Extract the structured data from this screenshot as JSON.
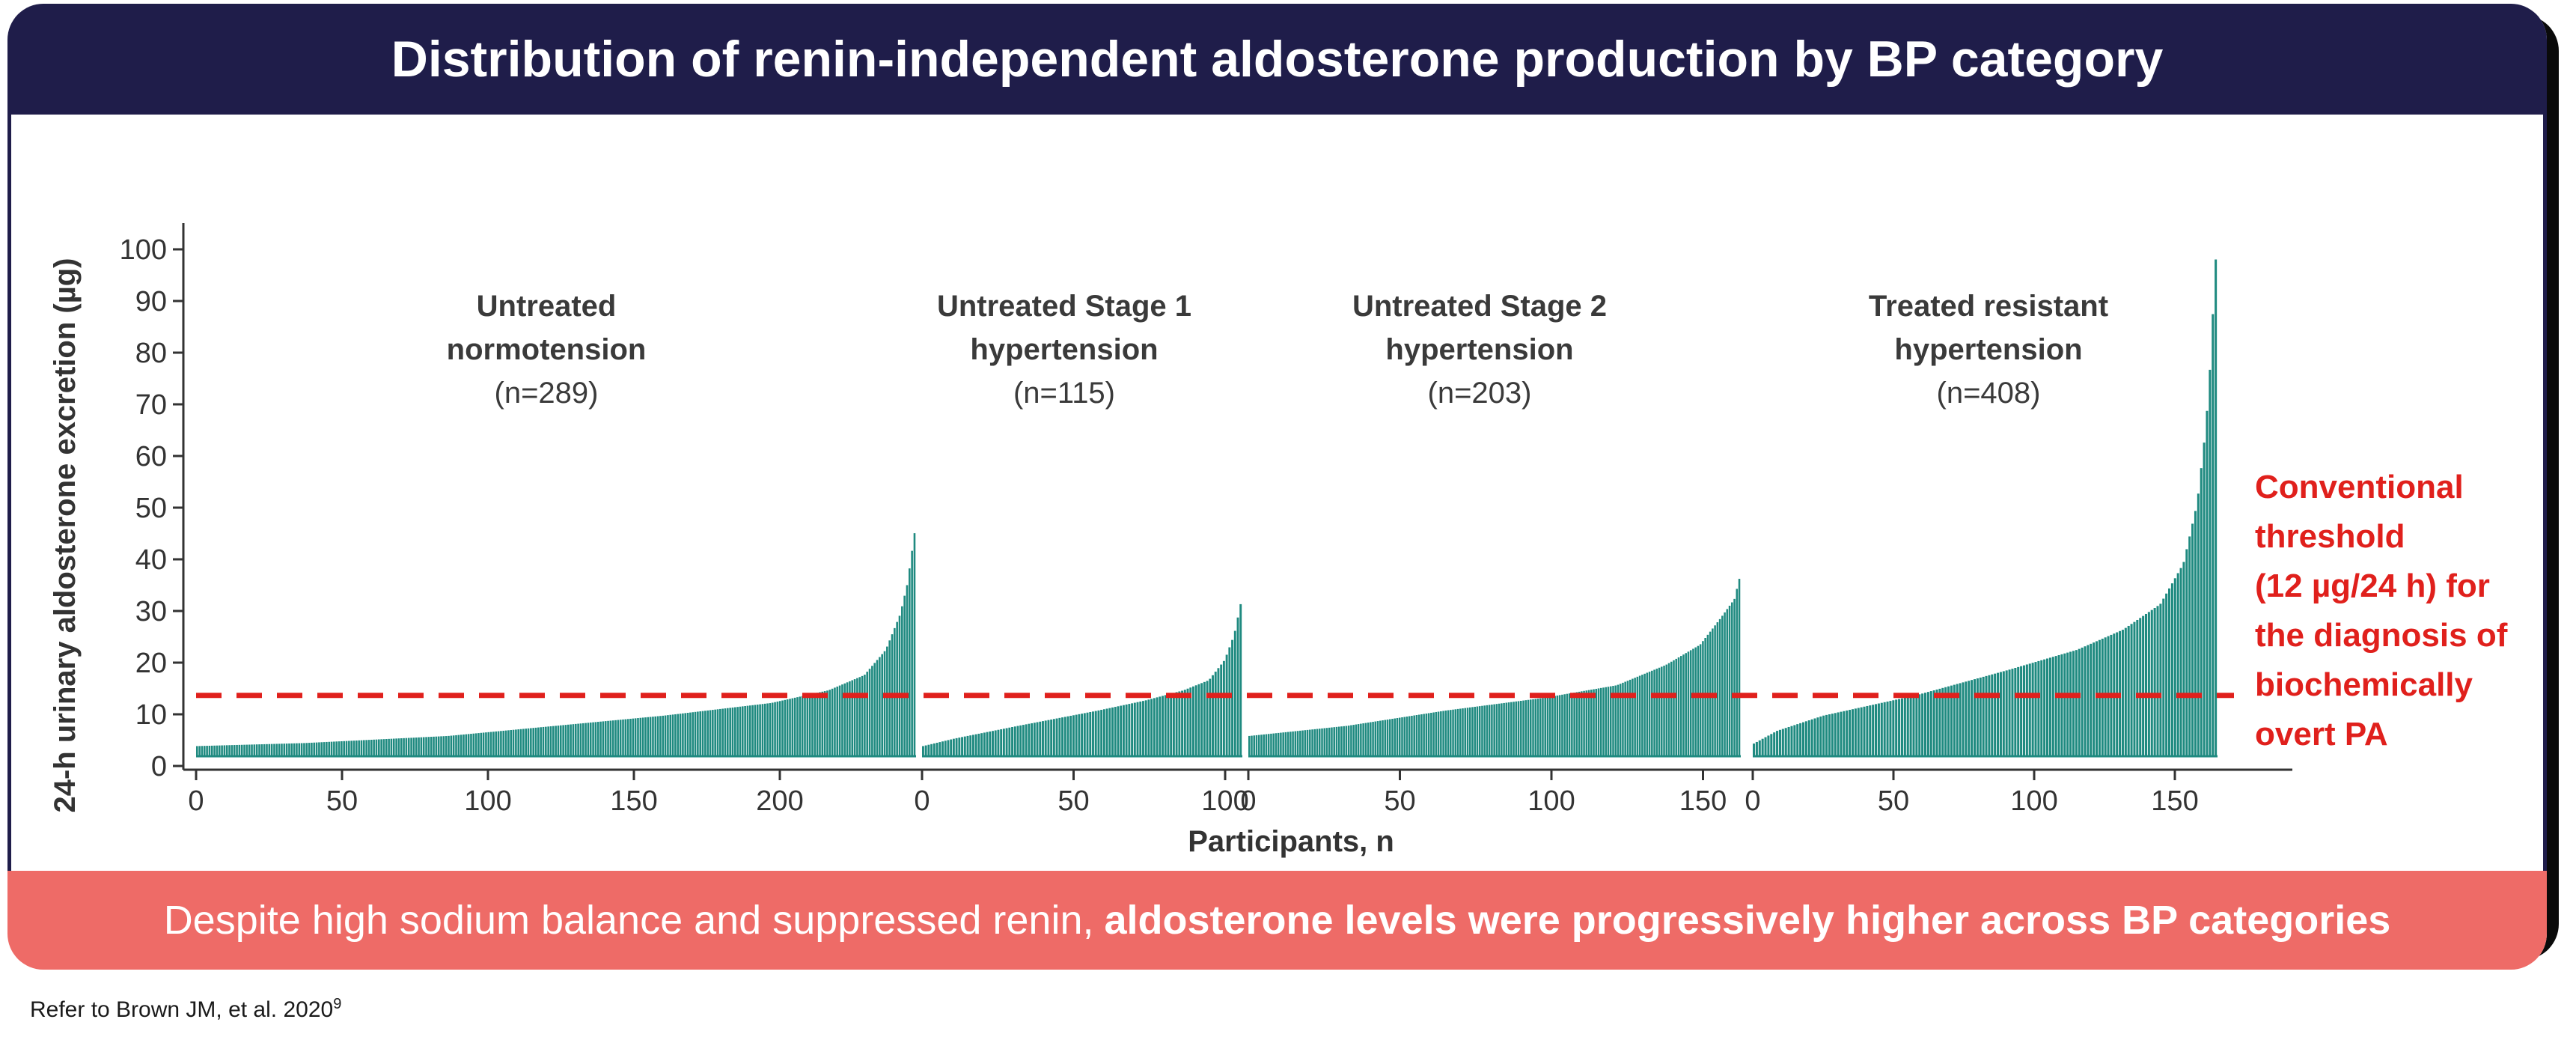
{
  "title": "Distribution of renin-independent aldosterone production by BP category",
  "banner": {
    "plain": "Despite high sodium balance and suppressed renin,",
    "bold": "aldosterone levels were progressively higher across BP categories"
  },
  "reference": {
    "text": "Refer to Brown JM, et al. 2020",
    "superscript": "9"
  },
  "colors": {
    "title_bar": "#1f1d4a",
    "banner": "#ee6b67",
    "bars": "#1f8a80",
    "threshold": "#e0201c",
    "annotation": "#e0201c"
  },
  "chart_data": {
    "type": "bar",
    "ylabel": "24-h urinary aldosterone excretion (µg)",
    "xlabel": "Participants, n",
    "ylim": [
      0,
      100
    ],
    "yticks": [
      0,
      10,
      20,
      30,
      40,
      50,
      60,
      70,
      80,
      90,
      100
    ],
    "threshold": {
      "value": 12,
      "label_lines": [
        "Conventional",
        "threshold",
        "(12 µg/24 h) for",
        "the diagnosis of",
        "biochemically",
        "overt PA"
      ]
    },
    "groups": [
      {
        "label_lines": [
          "Untreated",
          "normotension",
          "(n=289)"
        ],
        "xticks": [
          0,
          50,
          100,
          150,
          200
        ],
        "profile": [
          [
            0,
            2
          ],
          [
            0.15,
            2.6
          ],
          [
            0.35,
            4
          ],
          [
            0.5,
            6
          ],
          [
            0.65,
            8
          ],
          [
            0.8,
            10.5
          ],
          [
            0.88,
            13
          ],
          [
            0.93,
            16
          ],
          [
            0.96,
            21
          ],
          [
            0.98,
            28
          ],
          [
            0.99,
            34
          ],
          [
            0.995,
            39
          ],
          [
            1,
            44
          ]
        ]
      },
      {
        "label_lines": [
          "Untreated Stage 1",
          "hypertension",
          "(n=115)"
        ],
        "xticks": [
          0,
          50,
          100
        ],
        "profile": [
          [
            0,
            2
          ],
          [
            0.1,
            3.5
          ],
          [
            0.3,
            6
          ],
          [
            0.55,
            9
          ],
          [
            0.7,
            11
          ],
          [
            0.82,
            13
          ],
          [
            0.9,
            15
          ],
          [
            0.95,
            19
          ],
          [
            0.98,
            24
          ],
          [
            1,
            30
          ]
        ]
      },
      {
        "label_lines": [
          "Untreated Stage 2",
          "hypertension",
          "(n=203)"
        ],
        "xticks": [
          0,
          50,
          100,
          150
        ],
        "profile": [
          [
            0,
            4
          ],
          [
            0.2,
            6
          ],
          [
            0.4,
            9
          ],
          [
            0.6,
            11.5
          ],
          [
            0.75,
            14
          ],
          [
            0.85,
            18
          ],
          [
            0.92,
            22
          ],
          [
            0.96,
            27
          ],
          [
            0.99,
            31
          ],
          [
            1,
            35
          ]
        ]
      },
      {
        "label_lines": [
          "Treated resistant",
          "hypertension",
          "(n=408)"
        ],
        "xticks": [
          0,
          50,
          100,
          150
        ],
        "profile": [
          [
            0,
            2.5
          ],
          [
            0.05,
            5
          ],
          [
            0.15,
            8
          ],
          [
            0.35,
            12
          ],
          [
            0.55,
            17
          ],
          [
            0.7,
            21
          ],
          [
            0.8,
            25
          ],
          [
            0.88,
            30
          ],
          [
            0.93,
            38
          ],
          [
            0.96,
            50
          ],
          [
            0.975,
            62
          ],
          [
            0.985,
            72
          ],
          [
            0.993,
            86
          ],
          [
            1,
            98
          ]
        ]
      }
    ]
  }
}
